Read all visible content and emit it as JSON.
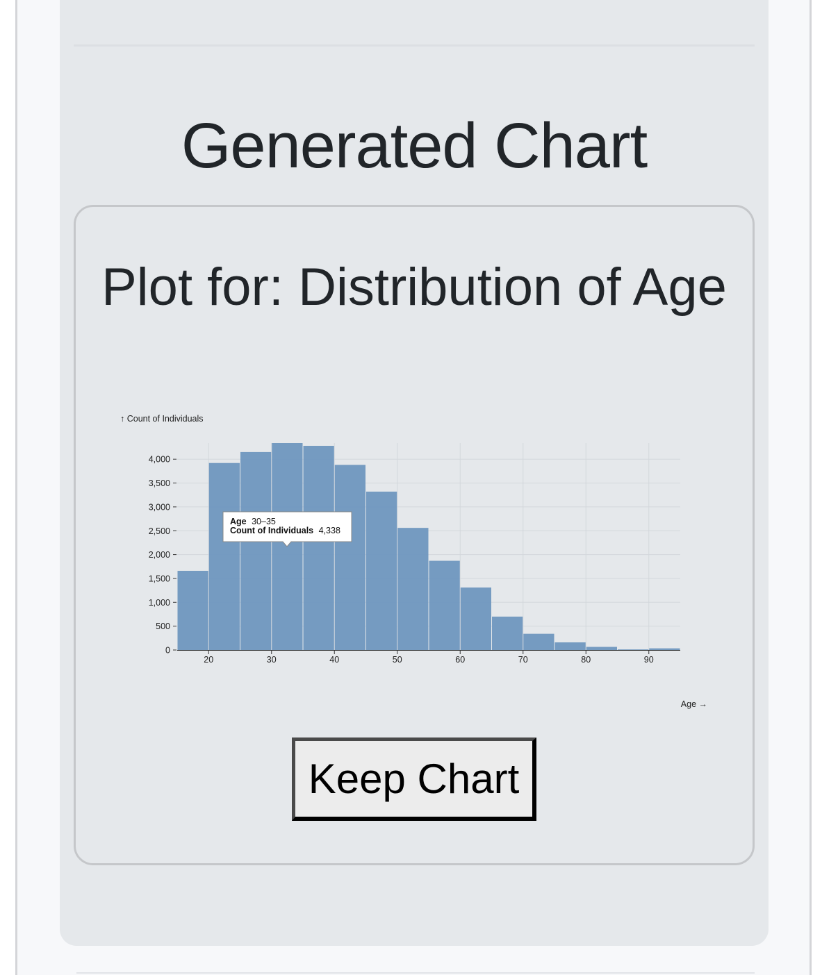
{
  "page": {
    "section_title": "Generated Chart",
    "plot_title": "Plot for: Distribution of Age",
    "keep_button_label": "Keep Chart"
  },
  "colors": {
    "bar_fill": "#6f97bf",
    "panel_bg": "#e5e8eb",
    "text": "#212529"
  },
  "tooltip": {
    "field1_label": "Age",
    "field1_value": "30–35",
    "field2_label": "Count of Individuals",
    "field2_value": "4,338"
  },
  "chart_data": {
    "type": "bar",
    "xlabel": "Age →",
    "ylabel": "↑ Count of Individuals",
    "xlim": [
      15,
      95
    ],
    "ylim": [
      0,
      4338
    ],
    "grid": true,
    "bin_width": 5,
    "x_ticks": [
      20,
      30,
      40,
      50,
      60,
      70,
      80,
      90
    ],
    "x_tick_labels": [
      "20",
      "30",
      "40",
      "50",
      "60",
      "70",
      "80",
      "90"
    ],
    "y_ticks": [
      0,
      500,
      1000,
      1500,
      2000,
      2500,
      3000,
      3500,
      4000
    ],
    "y_tick_labels": [
      "0",
      "500",
      "1,000",
      "1,500",
      "2,000",
      "2,500",
      "3,000",
      "3,500",
      "4,000"
    ],
    "bins": [
      {
        "x0": 15,
        "x1": 20,
        "value": 1660
      },
      {
        "x0": 20,
        "x1": 25,
        "value": 3920
      },
      {
        "x0": 25,
        "x1": 30,
        "value": 4150
      },
      {
        "x0": 30,
        "x1": 35,
        "value": 4338
      },
      {
        "x0": 35,
        "x1": 40,
        "value": 4280
      },
      {
        "x0": 40,
        "x1": 45,
        "value": 3880
      },
      {
        "x0": 45,
        "x1": 50,
        "value": 3320
      },
      {
        "x0": 50,
        "x1": 55,
        "value": 2560
      },
      {
        "x0": 55,
        "x1": 60,
        "value": 1870
      },
      {
        "x0": 60,
        "x1": 65,
        "value": 1310
      },
      {
        "x0": 65,
        "x1": 70,
        "value": 700
      },
      {
        "x0": 70,
        "x1": 75,
        "value": 340
      },
      {
        "x0": 75,
        "x1": 80,
        "value": 160
      },
      {
        "x0": 80,
        "x1": 85,
        "value": 65
      },
      {
        "x0": 85,
        "x1": 90,
        "value": 12
      },
      {
        "x0": 90,
        "x1": 95,
        "value": 35
      }
    ]
  }
}
